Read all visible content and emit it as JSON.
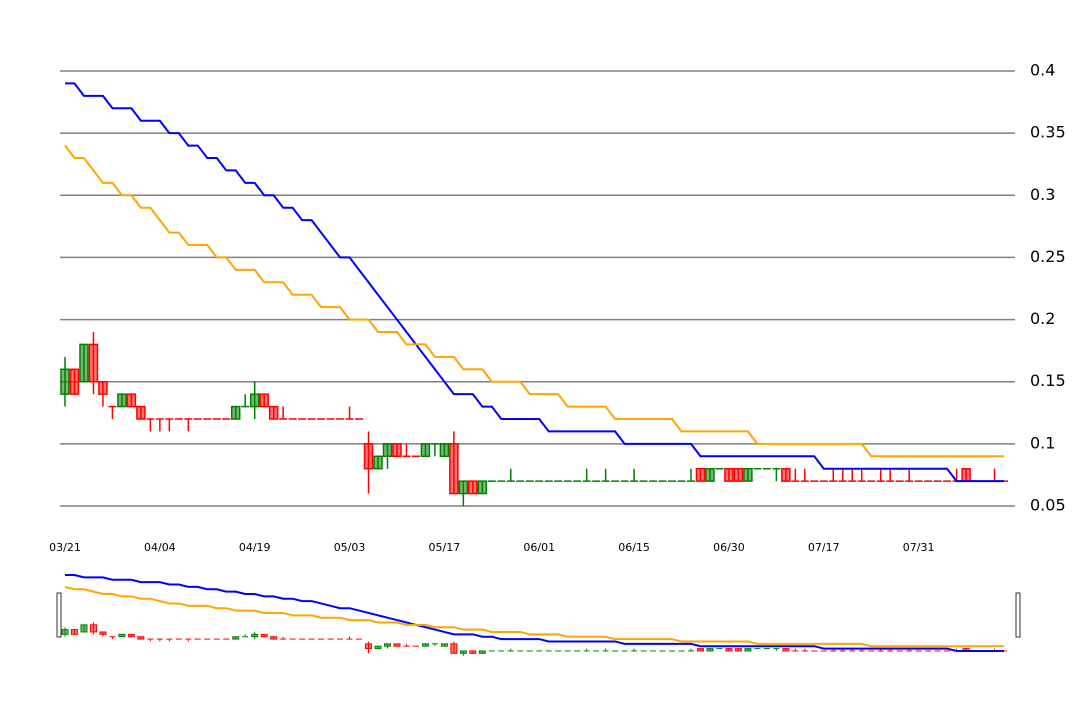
{
  "chart_data": {
    "type": "candlestick",
    "categories": [
      "03/21",
      null,
      null,
      null,
      null,
      null,
      null,
      null,
      null,
      null,
      "04/04",
      null,
      null,
      null,
      null,
      null,
      null,
      null,
      null,
      null,
      "04/19",
      null,
      null,
      null,
      null,
      null,
      null,
      null,
      null,
      null,
      "05/03",
      null,
      null,
      null,
      null,
      null,
      null,
      null,
      null,
      null,
      "05/17",
      null,
      null,
      null,
      null,
      null,
      null,
      null,
      null,
      null,
      "06/01",
      null,
      null,
      null,
      null,
      null,
      null,
      null,
      null,
      null,
      "06/15",
      null,
      null,
      null,
      null,
      null,
      null,
      null,
      null,
      null,
      "06/30",
      null,
      null,
      null,
      null,
      null,
      null,
      null,
      null,
      null,
      "07/17",
      null,
      null,
      null,
      null,
      null,
      null,
      null,
      null,
      null,
      "07/31",
      null,
      null,
      null,
      null,
      null,
      null,
      null,
      null,
      null
    ],
    "open": [
      0.14,
      0.16,
      0.15,
      0.18,
      0.15,
      0.13,
      0.13,
      0.14,
      0.13,
      0.12,
      0.12,
      0.12,
      0.12,
      0.12,
      0.12,
      0.12,
      0.12,
      0.12,
      0.12,
      0.13,
      0.13,
      0.14,
      0.13,
      0.12,
      0.12,
      0.12,
      0.12,
      0.12,
      0.12,
      0.12,
      0.12,
      0.12,
      0.1,
      0.08,
      0.09,
      0.1,
      0.09,
      0.09,
      0.09,
      0.1,
      0.09,
      0.1,
      0.06,
      0.07,
      0.06,
      0.07,
      0.07,
      0.07,
      0.07,
      0.07,
      0.07,
      0.07,
      0.07,
      0.07,
      0.07,
      0.07,
      0.07,
      0.07,
      0.07,
      0.07,
      0.07,
      0.07,
      0.07,
      0.07,
      0.07,
      0.07,
      0.07,
      0.08,
      0.07,
      0.08,
      0.08,
      0.08,
      0.07,
      0.08,
      0.08,
      0.08,
      0.08,
      0.07,
      0.07,
      0.07,
      0.07,
      0.07,
      0.07,
      0.07,
      0.07,
      0.07,
      0.07,
      0.07,
      0.07,
      0.07,
      0.07,
      0.07,
      0.07,
      0.07,
      0.07,
      0.08,
      0.07,
      0.07,
      0.07,
      0.07
    ],
    "high": [
      0.17,
      0.16,
      0.18,
      0.19,
      0.15,
      0.13,
      0.14,
      0.14,
      0.13,
      0.12,
      0.12,
      0.12,
      0.12,
      0.12,
      0.12,
      0.12,
      0.12,
      0.12,
      0.13,
      0.14,
      0.15,
      0.14,
      0.13,
      0.13,
      0.12,
      0.12,
      0.12,
      0.12,
      0.12,
      0.12,
      0.13,
      0.12,
      0.11,
      0.09,
      0.1,
      0.1,
      0.1,
      0.09,
      0.1,
      0.1,
      0.1,
      0.11,
      0.07,
      0.07,
      0.07,
      0.07,
      0.07,
      0.08,
      0.07,
      0.07,
      0.07,
      0.07,
      0.07,
      0.07,
      0.07,
      0.08,
      0.07,
      0.08,
      0.07,
      0.07,
      0.08,
      0.07,
      0.07,
      0.07,
      0.07,
      0.07,
      0.08,
      0.08,
      0.08,
      0.08,
      0.08,
      0.08,
      0.08,
      0.08,
      0.08,
      0.08,
      0.08,
      0.08,
      0.08,
      0.07,
      0.07,
      0.08,
      0.08,
      0.08,
      0.08,
      0.07,
      0.08,
      0.08,
      0.07,
      0.08,
      0.07,
      0.07,
      0.07,
      0.07,
      0.08,
      0.08,
      0.07,
      0.07,
      0.08,
      0.07
    ],
    "low": [
      0.13,
      0.14,
      0.15,
      0.14,
      0.13,
      0.12,
      0.13,
      0.13,
      0.12,
      0.11,
      0.11,
      0.11,
      0.12,
      0.11,
      0.12,
      0.12,
      0.12,
      0.12,
      0.12,
      0.13,
      0.12,
      0.13,
      0.12,
      0.12,
      0.12,
      0.12,
      0.12,
      0.12,
      0.12,
      0.12,
      0.12,
      0.12,
      0.06,
      0.08,
      0.08,
      0.09,
      0.09,
      0.09,
      0.09,
      0.09,
      0.09,
      0.06,
      0.05,
      0.06,
      0.06,
      0.07,
      0.07,
      0.07,
      0.07,
      0.07,
      0.07,
      0.07,
      0.07,
      0.07,
      0.07,
      0.07,
      0.07,
      0.07,
      0.07,
      0.07,
      0.07,
      0.07,
      0.07,
      0.07,
      0.07,
      0.07,
      0.07,
      0.07,
      0.07,
      0.08,
      0.07,
      0.07,
      0.07,
      0.08,
      0.08,
      0.07,
      0.07,
      0.07,
      0.07,
      0.07,
      0.07,
      0.07,
      0.07,
      0.07,
      0.07,
      0.07,
      0.07,
      0.07,
      0.07,
      0.07,
      0.07,
      0.07,
      0.07,
      0.07,
      0.07,
      0.07,
      0.07,
      0.07,
      0.07,
      0.07
    ],
    "close": [
      0.16,
      0.14,
      0.18,
      0.15,
      0.14,
      0.13,
      0.14,
      0.13,
      0.12,
      0.12,
      0.12,
      0.12,
      0.12,
      0.12,
      0.12,
      0.12,
      0.12,
      0.12,
      0.13,
      0.13,
      0.14,
      0.13,
      0.12,
      0.12,
      0.12,
      0.12,
      0.12,
      0.12,
      0.12,
      0.12,
      0.12,
      0.12,
      0.08,
      0.09,
      0.1,
      0.09,
      0.09,
      0.09,
      0.1,
      0.1,
      0.1,
      0.06,
      0.07,
      0.06,
      0.07,
      0.07,
      0.07,
      0.07,
      0.07,
      0.07,
      0.07,
      0.07,
      0.07,
      0.07,
      0.07,
      0.07,
      0.07,
      0.07,
      0.07,
      0.07,
      0.07,
      0.07,
      0.07,
      0.07,
      0.07,
      0.07,
      0.07,
      0.07,
      0.08,
      0.08,
      0.07,
      0.07,
      0.08,
      0.08,
      0.08,
      0.08,
      0.07,
      0.07,
      0.07,
      0.07,
      0.07,
      0.07,
      0.07,
      0.07,
      0.07,
      0.07,
      0.07,
      0.07,
      0.07,
      0.07,
      0.07,
      0.07,
      0.07,
      0.07,
      0.07,
      0.07,
      0.07,
      0.07,
      0.07,
      0.07
    ],
    "up_color": "#008000",
    "down_color": "#ff0000",
    "lines": [
      {
        "color": "#0000ff",
        "values": [
          0.39,
          0.39,
          0.38,
          0.38,
          0.38,
          0.37,
          0.37,
          0.37,
          0.36,
          0.36,
          0.36,
          0.35,
          0.35,
          0.34,
          0.34,
          0.33,
          0.33,
          0.32,
          0.32,
          0.31,
          0.31,
          0.3,
          0.3,
          0.29,
          0.29,
          0.28,
          0.28,
          0.27,
          0.26,
          0.25,
          0.25,
          0.24,
          0.23,
          0.22,
          0.21,
          0.2,
          0.19,
          0.18,
          0.17,
          0.16,
          0.15,
          0.14,
          0.14,
          0.14,
          0.13,
          0.13,
          0.12,
          0.12,
          0.12,
          0.12,
          0.12,
          0.11,
          0.11,
          0.11,
          0.11,
          0.11,
          0.11,
          0.11,
          0.11,
          0.1,
          0.1,
          0.1,
          0.1,
          0.1,
          0.1,
          0.1,
          0.1,
          0.09,
          0.09,
          0.09,
          0.09,
          0.09,
          0.09,
          0.09,
          0.09,
          0.09,
          0.09,
          0.09,
          0.09,
          0.09,
          0.08,
          0.08,
          0.08,
          0.08,
          0.08,
          0.08,
          0.08,
          0.08,
          0.08,
          0.08,
          0.08,
          0.08,
          0.08,
          0.08,
          0.07,
          0.07,
          0.07,
          0.07,
          0.07,
          0.07
        ]
      },
      {
        "color": "#ffa500",
        "values": [
          0.34,
          0.33,
          0.33,
          0.32,
          0.31,
          0.31,
          0.3,
          0.3,
          0.29,
          0.29,
          0.28,
          0.27,
          0.27,
          0.26,
          0.26,
          0.26,
          0.25,
          0.25,
          0.24,
          0.24,
          0.24,
          0.23,
          0.23,
          0.23,
          0.22,
          0.22,
          0.22,
          0.21,
          0.21,
          0.21,
          0.2,
          0.2,
          0.2,
          0.19,
          0.19,
          0.19,
          0.18,
          0.18,
          0.18,
          0.17,
          0.17,
          0.17,
          0.16,
          0.16,
          0.16,
          0.15,
          0.15,
          0.15,
          0.15,
          0.14,
          0.14,
          0.14,
          0.14,
          0.13,
          0.13,
          0.13,
          0.13,
          0.13,
          0.12,
          0.12,
          0.12,
          0.12,
          0.12,
          0.12,
          0.12,
          0.11,
          0.11,
          0.11,
          0.11,
          0.11,
          0.11,
          0.11,
          0.11,
          0.1,
          0.1,
          0.1,
          0.1,
          0.1,
          0.1,
          0.1,
          0.1,
          0.1,
          0.1,
          0.1,
          0.1,
          0.09,
          0.09,
          0.09,
          0.09,
          0.09,
          0.09,
          0.09,
          0.09,
          0.09,
          0.09,
          0.09,
          0.09,
          0.09,
          0.09,
          0.09
        ]
      }
    ],
    "ylim": [
      0.05,
      0.4
    ],
    "yticks": [
      0.05,
      0.1,
      0.15,
      0.2,
      0.25,
      0.3,
      0.35,
      0.4
    ],
    "grid": true,
    "navigator": true
  }
}
